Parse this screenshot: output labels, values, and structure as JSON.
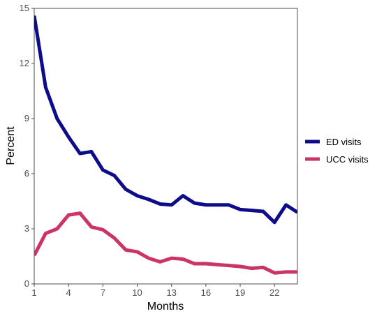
{
  "chart_data": {
    "type": "line",
    "x": [
      1,
      2,
      3,
      4,
      5,
      6,
      7,
      8,
      9,
      10,
      11,
      12,
      13,
      14,
      15,
      16,
      17,
      18,
      19,
      20,
      21,
      22,
      23,
      24
    ],
    "series": [
      {
        "name": "ED visits",
        "color": "#0d0d8c",
        "values": [
          14.6,
          10.7,
          9.0,
          8.0,
          7.1,
          7.2,
          6.2,
          5.9,
          5.15,
          4.8,
          4.6,
          4.35,
          4.3,
          4.8,
          4.4,
          4.3,
          4.3,
          4.3,
          4.05,
          4.0,
          3.95,
          3.35,
          4.3,
          3.9
        ]
      },
      {
        "name": "UCC visits",
        "color": "#cc3366",
        "values": [
          1.55,
          2.75,
          3.0,
          3.75,
          3.85,
          3.1,
          2.95,
          2.5,
          1.85,
          1.75,
          1.4,
          1.2,
          1.4,
          1.35,
          1.1,
          1.1,
          1.05,
          1.0,
          0.95,
          0.85,
          0.9,
          0.6,
          0.65,
          0.65
        ]
      }
    ],
    "xlabel": "Months",
    "ylabel": "Percent",
    "xlim": [
      1,
      24
    ],
    "ylim": [
      0,
      15
    ],
    "xticks": [
      1,
      4,
      7,
      10,
      13,
      16,
      19,
      22
    ],
    "yticks": [
      0,
      3,
      6,
      9,
      12,
      15
    ],
    "grid": false,
    "legend": "right"
  }
}
